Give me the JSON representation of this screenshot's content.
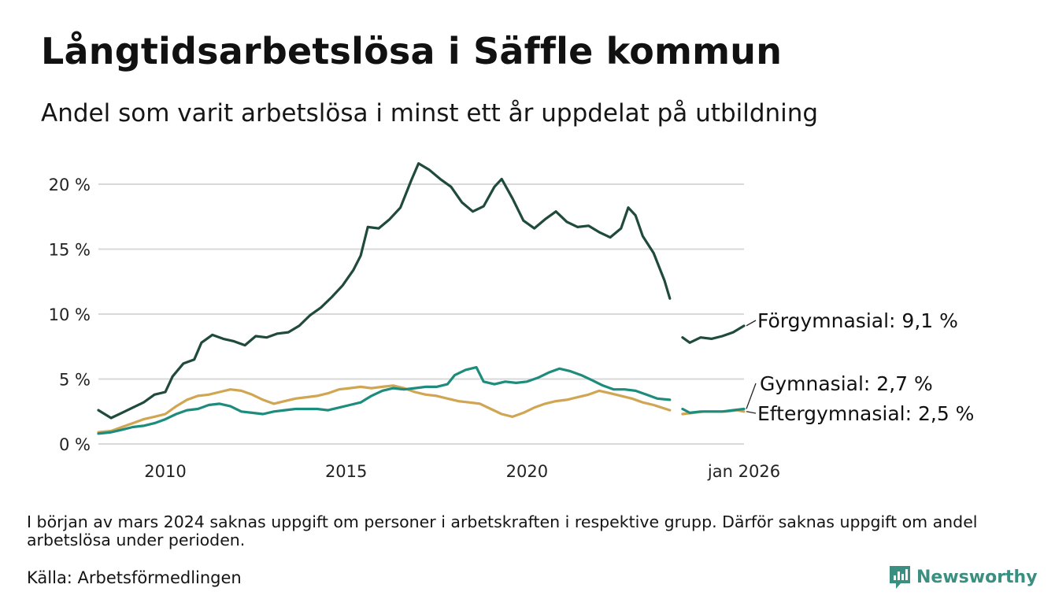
{
  "title": "Långtidsarbetslösa i Säffle kommun",
  "subtitle": "Andel som varit arbetslösa i minst ett år uppdelat på utbildning",
  "note": "I början av mars 2024 saknas uppgift om personer i arbetskraften i respektive grupp. Därför saknas uppgift om andel arbetslösa under perioden.",
  "source": "Källa: Arbetsförmedlingen",
  "brand": "Newsworthy",
  "colors": {
    "forgymnasial": "#1f4a3c",
    "gymnasial": "#1e8c7d",
    "eftergymnasial": "#d0a653",
    "grid": "#d9d9d9",
    "brand": "#3a8f80"
  },
  "chart_data": {
    "type": "line",
    "title": "Långtidsarbetslösa i Säffle kommun",
    "xlabel": "",
    "ylabel": "",
    "xlim": [
      2008.15,
      2026.0
    ],
    "ylim": [
      0,
      22
    ],
    "y_ticks": [
      0,
      5,
      10,
      15,
      20
    ],
    "y_tick_labels": [
      "0 %",
      "5 %",
      "10 %",
      "15 %",
      "20 %"
    ],
    "x_ticks": [
      2010,
      2015,
      2020,
      2026.0
    ],
    "x_tick_labels": [
      "2010",
      "2015",
      "2020",
      "jan 2026"
    ],
    "gap": [
      2023.95,
      2024.3
    ],
    "series": [
      {
        "name": "Förgymnasial",
        "label": "Förgymnasial: 9,1 %",
        "color_key": "forgymnasial",
        "points": [
          [
            2008.15,
            2.6
          ],
          [
            2008.5,
            2.0
          ],
          [
            2008.8,
            2.4
          ],
          [
            2009.1,
            2.8
          ],
          [
            2009.4,
            3.2
          ],
          [
            2009.7,
            3.8
          ],
          [
            2010.0,
            4.0
          ],
          [
            2010.2,
            5.2
          ],
          [
            2010.5,
            6.2
          ],
          [
            2010.8,
            6.5
          ],
          [
            2011.0,
            7.8
          ],
          [
            2011.3,
            8.4
          ],
          [
            2011.6,
            8.1
          ],
          [
            2011.9,
            7.9
          ],
          [
            2012.2,
            7.6
          ],
          [
            2012.5,
            8.3
          ],
          [
            2012.8,
            8.2
          ],
          [
            2013.1,
            8.5
          ],
          [
            2013.4,
            8.6
          ],
          [
            2013.7,
            9.1
          ],
          [
            2014.0,
            9.9
          ],
          [
            2014.3,
            10.5
          ],
          [
            2014.6,
            11.3
          ],
          [
            2014.9,
            12.2
          ],
          [
            2015.2,
            13.4
          ],
          [
            2015.4,
            14.5
          ],
          [
            2015.6,
            16.7
          ],
          [
            2015.9,
            16.6
          ],
          [
            2016.2,
            17.3
          ],
          [
            2016.5,
            18.2
          ],
          [
            2016.8,
            20.3
          ],
          [
            2017.0,
            21.6
          ],
          [
            2017.3,
            21.1
          ],
          [
            2017.6,
            20.4
          ],
          [
            2017.9,
            19.8
          ],
          [
            2018.2,
            18.6
          ],
          [
            2018.5,
            17.9
          ],
          [
            2018.8,
            18.3
          ],
          [
            2019.1,
            19.8
          ],
          [
            2019.3,
            20.4
          ],
          [
            2019.6,
            18.9
          ],
          [
            2019.9,
            17.2
          ],
          [
            2020.2,
            16.6
          ],
          [
            2020.5,
            17.3
          ],
          [
            2020.8,
            17.9
          ],
          [
            2021.1,
            17.1
          ],
          [
            2021.4,
            16.7
          ],
          [
            2021.7,
            16.8
          ],
          [
            2022.0,
            16.3
          ],
          [
            2022.3,
            15.9
          ],
          [
            2022.6,
            16.6
          ],
          [
            2022.8,
            18.2
          ],
          [
            2023.0,
            17.6
          ],
          [
            2023.2,
            16.0
          ],
          [
            2023.5,
            14.7
          ],
          [
            2023.8,
            12.6
          ],
          [
            2023.95,
            11.2
          ],
          null,
          [
            2024.3,
            8.2
          ],
          [
            2024.5,
            7.8
          ],
          [
            2024.8,
            8.2
          ],
          [
            2025.1,
            8.1
          ],
          [
            2025.4,
            8.3
          ],
          [
            2025.7,
            8.6
          ],
          [
            2026.0,
            9.1
          ]
        ]
      },
      {
        "name": "Gymnasial",
        "label": "Gymnasial: 2,7 %",
        "color_key": "gymnasial",
        "points": [
          [
            2008.15,
            0.8
          ],
          [
            2008.5,
            0.9
          ],
          [
            2008.8,
            1.1
          ],
          [
            2009.1,
            1.3
          ],
          [
            2009.4,
            1.4
          ],
          [
            2009.7,
            1.6
          ],
          [
            2010.0,
            1.9
          ],
          [
            2010.3,
            2.3
          ],
          [
            2010.6,
            2.6
          ],
          [
            2010.9,
            2.7
          ],
          [
            2011.2,
            3.0
          ],
          [
            2011.5,
            3.1
          ],
          [
            2011.8,
            2.9
          ],
          [
            2012.1,
            2.5
          ],
          [
            2012.4,
            2.4
          ],
          [
            2012.7,
            2.3
          ],
          [
            2013.0,
            2.5
          ],
          [
            2013.3,
            2.6
          ],
          [
            2013.6,
            2.7
          ],
          [
            2013.9,
            2.7
          ],
          [
            2014.2,
            2.7
          ],
          [
            2014.5,
            2.6
          ],
          [
            2014.8,
            2.8
          ],
          [
            2015.1,
            3.0
          ],
          [
            2015.4,
            3.2
          ],
          [
            2015.7,
            3.7
          ],
          [
            2016.0,
            4.1
          ],
          [
            2016.3,
            4.3
          ],
          [
            2016.6,
            4.2
          ],
          [
            2016.9,
            4.3
          ],
          [
            2017.2,
            4.4
          ],
          [
            2017.5,
            4.4
          ],
          [
            2017.8,
            4.6
          ],
          [
            2018.0,
            5.3
          ],
          [
            2018.3,
            5.7
          ],
          [
            2018.6,
            5.9
          ],
          [
            2018.8,
            4.8
          ],
          [
            2019.1,
            4.6
          ],
          [
            2019.4,
            4.8
          ],
          [
            2019.7,
            4.7
          ],
          [
            2020.0,
            4.8
          ],
          [
            2020.3,
            5.1
          ],
          [
            2020.6,
            5.5
          ],
          [
            2020.9,
            5.8
          ],
          [
            2021.2,
            5.6
          ],
          [
            2021.5,
            5.3
          ],
          [
            2021.8,
            4.9
          ],
          [
            2022.1,
            4.5
          ],
          [
            2022.4,
            4.2
          ],
          [
            2022.7,
            4.2
          ],
          [
            2023.0,
            4.1
          ],
          [
            2023.3,
            3.8
          ],
          [
            2023.6,
            3.5
          ],
          [
            2023.95,
            3.4
          ],
          null,
          [
            2024.3,
            2.7
          ],
          [
            2024.5,
            2.4
          ],
          [
            2024.8,
            2.5
          ],
          [
            2025.1,
            2.5
          ],
          [
            2025.4,
            2.5
          ],
          [
            2025.7,
            2.6
          ],
          [
            2026.0,
            2.7
          ]
        ]
      },
      {
        "name": "Eftergymnasial",
        "label": "Eftergymnasial: 2,5 %",
        "color_key": "eftergymnasial",
        "points": [
          [
            2008.15,
            0.9
          ],
          [
            2008.5,
            1.0
          ],
          [
            2008.8,
            1.3
          ],
          [
            2009.1,
            1.6
          ],
          [
            2009.4,
            1.9
          ],
          [
            2009.7,
            2.1
          ],
          [
            2010.0,
            2.3
          ],
          [
            2010.3,
            2.9
          ],
          [
            2010.6,
            3.4
          ],
          [
            2010.9,
            3.7
          ],
          [
            2011.2,
            3.8
          ],
          [
            2011.5,
            4.0
          ],
          [
            2011.8,
            4.2
          ],
          [
            2012.1,
            4.1
          ],
          [
            2012.4,
            3.8
          ],
          [
            2012.7,
            3.4
          ],
          [
            2013.0,
            3.1
          ],
          [
            2013.3,
            3.3
          ],
          [
            2013.6,
            3.5
          ],
          [
            2013.9,
            3.6
          ],
          [
            2014.2,
            3.7
          ],
          [
            2014.5,
            3.9
          ],
          [
            2014.8,
            4.2
          ],
          [
            2015.1,
            4.3
          ],
          [
            2015.4,
            4.4
          ],
          [
            2015.7,
            4.3
          ],
          [
            2016.0,
            4.4
          ],
          [
            2016.3,
            4.5
          ],
          [
            2016.6,
            4.3
          ],
          [
            2016.9,
            4.0
          ],
          [
            2017.2,
            3.8
          ],
          [
            2017.5,
            3.7
          ],
          [
            2017.8,
            3.5
          ],
          [
            2018.1,
            3.3
          ],
          [
            2018.4,
            3.2
          ],
          [
            2018.7,
            3.1
          ],
          [
            2019.0,
            2.7
          ],
          [
            2019.3,
            2.3
          ],
          [
            2019.6,
            2.1
          ],
          [
            2019.9,
            2.4
          ],
          [
            2020.2,
            2.8
          ],
          [
            2020.5,
            3.1
          ],
          [
            2020.8,
            3.3
          ],
          [
            2021.1,
            3.4
          ],
          [
            2021.4,
            3.6
          ],
          [
            2021.7,
            3.8
          ],
          [
            2022.0,
            4.1
          ],
          [
            2022.3,
            3.9
          ],
          [
            2022.6,
            3.7
          ],
          [
            2022.9,
            3.5
          ],
          [
            2023.2,
            3.2
          ],
          [
            2023.5,
            3.0
          ],
          [
            2023.95,
            2.6
          ],
          null,
          [
            2024.3,
            2.3
          ],
          [
            2024.6,
            2.4
          ],
          [
            2024.9,
            2.5
          ],
          [
            2025.2,
            2.5
          ],
          [
            2025.5,
            2.5
          ],
          [
            2025.8,
            2.6
          ],
          [
            2026.0,
            2.5
          ]
        ]
      }
    ]
  }
}
